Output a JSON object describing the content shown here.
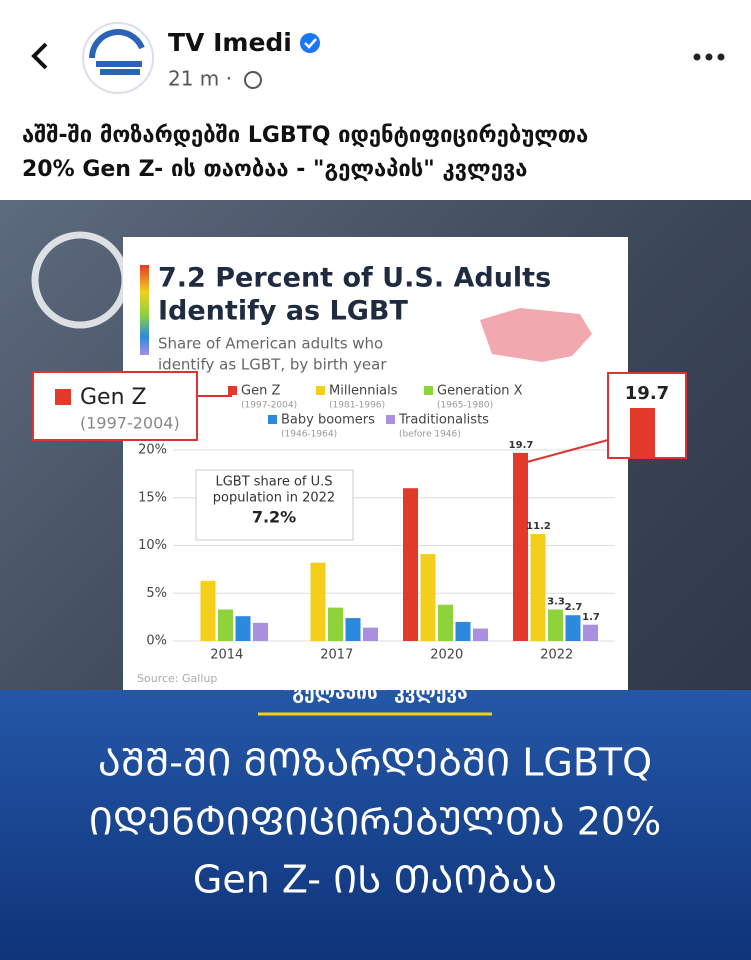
{
  "header": {
    "name": "TV Imedi",
    "time": "21 m ·"
  },
  "post": {
    "text": [
      "აშშ-ში მოზარდებში LGBTQ იდენტიფიცირებულთა",
      "20% Gen Z- ის თაობაა - \"გელაპის\" კვლევა"
    ]
  },
  "chart_data": {
    "type": "bar",
    "title": [
      "7.2 Percent of U.S. Adults",
      "Identify as LGBT"
    ],
    "subtitle": [
      "Share of American adults who",
      "identify as LGBT, by birth year"
    ],
    "categories": [
      "2014",
      "2017",
      "2020",
      "2022"
    ],
    "series": [
      {
        "name": "Gen Z",
        "years": "(1997-2004)",
        "color": "#e23a2a",
        "values": [
          null,
          null,
          16.0,
          19.7
        ]
      },
      {
        "name": "Millennials",
        "years": "(1981-1996)",
        "color": "#f3cf1c",
        "values": [
          6.3,
          8.2,
          9.1,
          11.2
        ]
      },
      {
        "name": "Generation X",
        "years": "(1965-1980)",
        "color": "#8fd33a",
        "values": [
          3.3,
          3.5,
          3.8,
          3.3
        ]
      },
      {
        "name": "Baby boomers",
        "years": "(1946-1964)",
        "color": "#2c8ade",
        "values": [
          2.6,
          2.4,
          2.0,
          2.7
        ]
      },
      {
        "name": "Traditionalists",
        "years": "(before 1946)",
        "color": "#a88fe0",
        "values": [
          1.9,
          1.4,
          1.3,
          1.7
        ]
      }
    ],
    "ylim": [
      0,
      20
    ],
    "yticks": [
      {
        "value": 0,
        "label": "0%"
      },
      {
        "value": 5,
        "label": "5%"
      },
      {
        "value": 10,
        "label": "10%"
      },
      {
        "value": 15,
        "label": "15%"
      },
      {
        "value": 20,
        "label": "20%"
      }
    ],
    "annotation": {
      "text": [
        "LGBT share of U.S",
        "population in 2022"
      ],
      "value": "7.2%"
    },
    "source": "Source: Gallup"
  },
  "banner": {
    "tag": "\"გელაპის\" კვლევა",
    "lines": [
      "ᲐᲨᲨ-ᲨᲘ ᲛᲝᲖᲐᲠᲓᲔᲑᲨᲘ LGBTQ",
      "ᲘᲓᲔᲜᲢᲘᲤᲘᲪᲘᲠᲔᲑᲣᲚᲗᲐ 20%",
      "Gen Z- ᲘᲡ ᲗᲐᲝᲑᲐᲐ"
    ]
  }
}
